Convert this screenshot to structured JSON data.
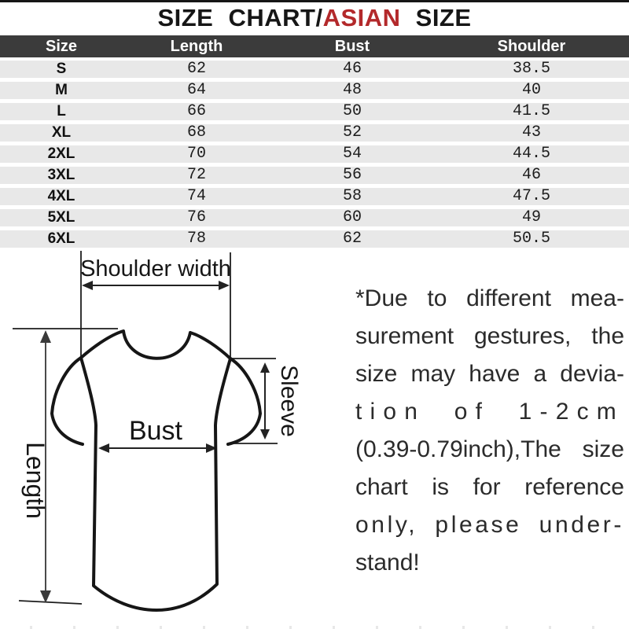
{
  "title": {
    "prefix": "SIZE CHART/",
    "highlight": "ASIAN",
    "suffix": " SIZE"
  },
  "table": {
    "headers": [
      "Size",
      "Length",
      "Bust",
      "Shoulder"
    ],
    "rows": [
      [
        "S",
        "62",
        "46",
        "38.5"
      ],
      [
        "M",
        "64",
        "48",
        "40"
      ],
      [
        "L",
        "66",
        "50",
        "41.5"
      ],
      [
        "XL",
        "68",
        "52",
        "43"
      ],
      [
        "2XL",
        "70",
        "54",
        "44.5"
      ],
      [
        "3XL",
        "72",
        "56",
        "46"
      ],
      [
        "4XL",
        "74",
        "58",
        "47.5"
      ],
      [
        "5XL",
        "76",
        "60",
        "49"
      ],
      [
        "6XL",
        "78",
        "62",
        "50.5"
      ]
    ]
  },
  "diagram": {
    "labels": {
      "shoulder_width": "Shoulder width",
      "bust": "Bust",
      "length": "Length",
      "sleeve": "Sleeve"
    }
  },
  "note": {
    "lines": [
      "*Due to different mea-",
      "surement gestures, the",
      "size may have a devia-",
      "tion of 1-2cm",
      "(0.39-0.79inch),The size",
      "chart is for reference",
      "only, please under-",
      "stand!"
    ]
  },
  "colors": {
    "accent_red": "#b3292b",
    "header_bg": "#3b3b3b",
    "row_bg": "#e8e8e8"
  },
  "chart_data": {
    "type": "table",
    "title": "SIZE CHART/ASIAN SIZE",
    "columns": [
      "Size",
      "Length",
      "Bust",
      "Shoulder"
    ],
    "rows": [
      {
        "size": "S",
        "length": 62,
        "bust": 46,
        "shoulder": 38.5
      },
      {
        "size": "M",
        "length": 64,
        "bust": 48,
        "shoulder": 40
      },
      {
        "size": "L",
        "length": 66,
        "bust": 50,
        "shoulder": 41.5
      },
      {
        "size": "XL",
        "length": 68,
        "bust": 52,
        "shoulder": 43
      },
      {
        "size": "2XL",
        "length": 70,
        "bust": 54,
        "shoulder": 44.5
      },
      {
        "size": "3XL",
        "length": 72,
        "bust": 56,
        "shoulder": 46
      },
      {
        "size": "4XL",
        "length": 74,
        "bust": 58,
        "shoulder": 47.5
      },
      {
        "size": "5XL",
        "length": 76,
        "bust": 60,
        "shoulder": 49
      },
      {
        "size": "6XL",
        "length": 78,
        "bust": 62,
        "shoulder": 50.5
      }
    ]
  }
}
